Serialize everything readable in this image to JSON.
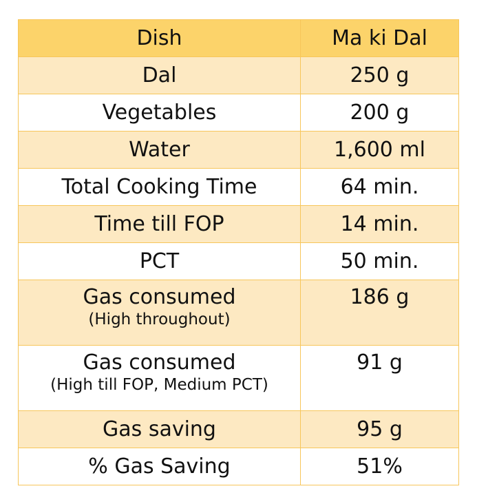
{
  "table": {
    "header": {
      "dish_label": "Dish",
      "dish_name": "Ma ki Dal"
    },
    "rows": [
      {
        "label": "Dal",
        "note": "",
        "value": "250 g"
      },
      {
        "label": "Vegetables",
        "note": "",
        "value": "200 g"
      },
      {
        "label": "Water",
        "note": "",
        "value": "1,600 ml"
      },
      {
        "label": "Total Cooking Time",
        "note": "",
        "value": "64 min."
      },
      {
        "label": "Time till FOP",
        "note": "",
        "value": "14 min."
      },
      {
        "label": "PCT",
        "note": "",
        "value": "50 min."
      },
      {
        "label": "Gas consumed",
        "note": "(High throughout)",
        "value": "186 g"
      },
      {
        "label": "Gas consumed",
        "note": "(High till FOP, Medium PCT)",
        "value": "91 g"
      },
      {
        "label": "Gas saving",
        "note": "",
        "value": "95 g"
      },
      {
        "label": "% Gas Saving",
        "note": "",
        "value": "51%"
      }
    ]
  },
  "colors": {
    "header_fill": "#fcd36a",
    "band_fill": "#fde9c2",
    "border": "#f7c65a"
  }
}
